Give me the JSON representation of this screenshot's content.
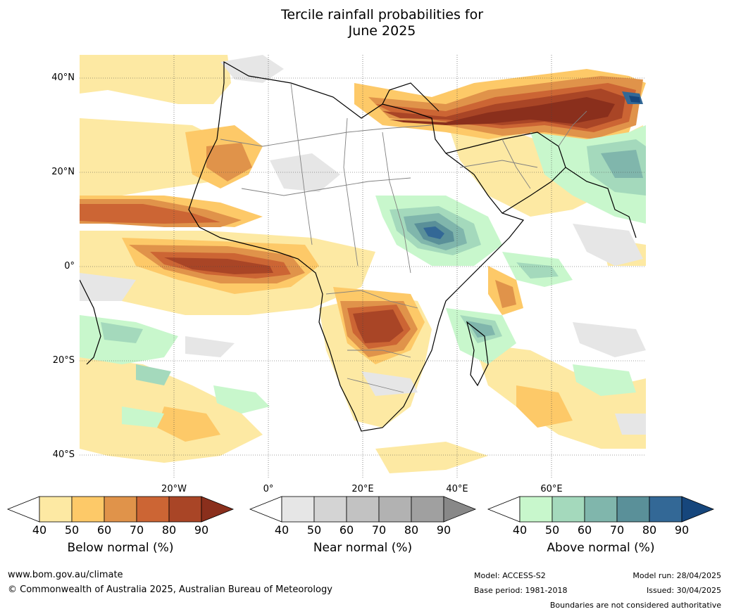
{
  "title": {
    "line1": "Tercile rainfall probabilities for",
    "line2": "June 2025"
  },
  "map": {
    "lat_labels": [
      "40°N",
      "20°N",
      "0°",
      "20°S",
      "40°S"
    ],
    "lon_labels": [
      "20°W",
      "0°",
      "20°E",
      "40°E",
      "60°E"
    ]
  },
  "legends": [
    {
      "caption": "Below normal (%)",
      "ticks": [
        "40",
        "50",
        "60",
        "70",
        "80",
        "90"
      ],
      "colors": [
        "#fde9a3",
        "#fdc968",
        "#e0934a",
        "#cc6534",
        "#a94526",
        "#8a2f1c"
      ]
    },
    {
      "caption": "Near normal (%)",
      "ticks": [
        "40",
        "50",
        "60",
        "70",
        "80",
        "90"
      ],
      "colors": [
        "#e6e6e6",
        "#d4d4d4",
        "#c2c2c2",
        "#b2b2b2",
        "#a0a0a0",
        "#888888"
      ]
    },
    {
      "caption": "Above normal (%)",
      "ticks": [
        "40",
        "50",
        "60",
        "70",
        "80",
        "90"
      ],
      "colors": [
        "#c8f7cc",
        "#a4d9bc",
        "#80b6ac",
        "#5a9099",
        "#336896",
        "#16467c"
      ]
    }
  ],
  "footer": {
    "website": "www.bom.gov.au/climate",
    "copyright": "© Commonwealth of Australia 2025, Australian Bureau of Meteorology",
    "model": "Model: ACCESS-S2",
    "base_period": "Base period: 1981-2018",
    "model_run": "Model run: 28/04/2025",
    "issued": "Issued: 30/04/2025",
    "disclaimer": "Boundaries are not considered authoritative"
  }
}
